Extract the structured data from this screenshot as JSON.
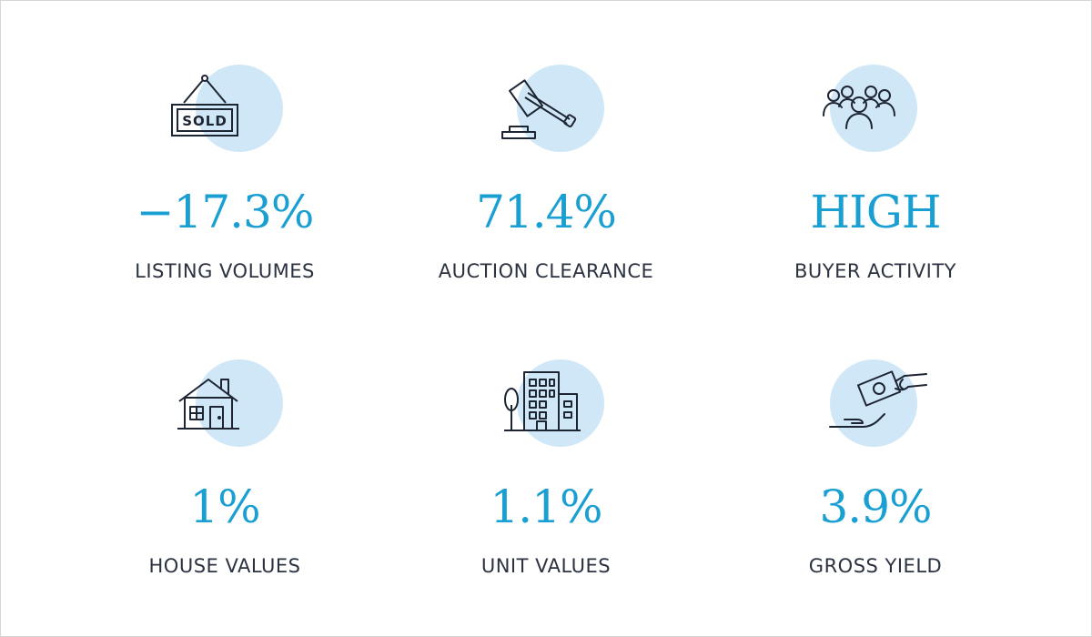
{
  "stats": [
    {
      "icon": "sold-sign-icon",
      "value": "−17.3%",
      "label": "LISTING VOLUMES"
    },
    {
      "icon": "auction-gavel-icon",
      "value": "71.4%",
      "label": "AUCTION CLEARANCE"
    },
    {
      "icon": "people-group-icon",
      "value": "HIGH",
      "label": "BUYER ACTIVITY"
    },
    {
      "icon": "house-icon",
      "value": "1%",
      "label": "HOUSE VALUES"
    },
    {
      "icon": "apartment-building-icon",
      "value": "1.1%",
      "label": "UNIT VALUES"
    },
    {
      "icon": "money-hand-icon",
      "value": "3.9%",
      "label": "GROSS YIELD"
    }
  ],
  "sold_sign_text": "SOLD",
  "colors": {
    "accent": "#1a9fd3",
    "icon_circle": "#cfe7f7",
    "label_text": "#2b3240",
    "icon_stroke": "#1d2533"
  }
}
